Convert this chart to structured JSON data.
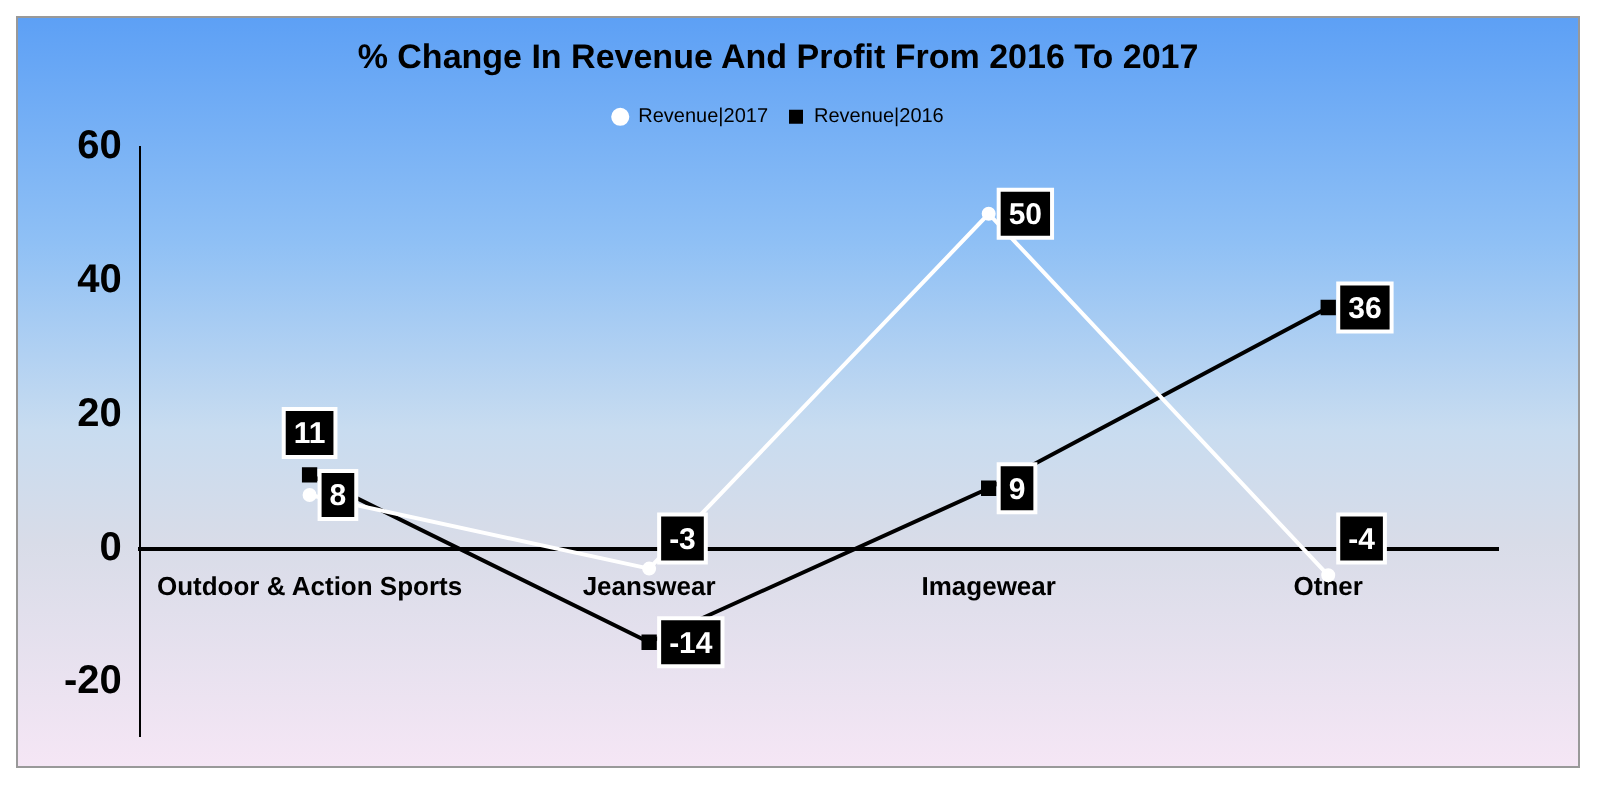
{
  "chart_data": {
    "type": "line",
    "title": "% Change In Revenue And Profit From 2016 To 2017",
    "categories": [
      "Outdoor & Action Sports",
      "Jeanswear",
      "Imagewear",
      "Other"
    ],
    "series": [
      {
        "name": "Revenue|2017",
        "color": "#ffffff",
        "marker": "circle",
        "values": [
          8,
          -3,
          50,
          -4
        ]
      },
      {
        "name": "Revenue|2016",
        "color": "#000000",
        "marker": "square",
        "values": [
          11,
          -14,
          9,
          36
        ]
      }
    ],
    "ylim": [
      -28,
      60
    ],
    "yticks": [
      -20,
      0,
      20,
      40,
      60
    ],
    "grid": false,
    "legend": "top",
    "data_labels": true
  }
}
